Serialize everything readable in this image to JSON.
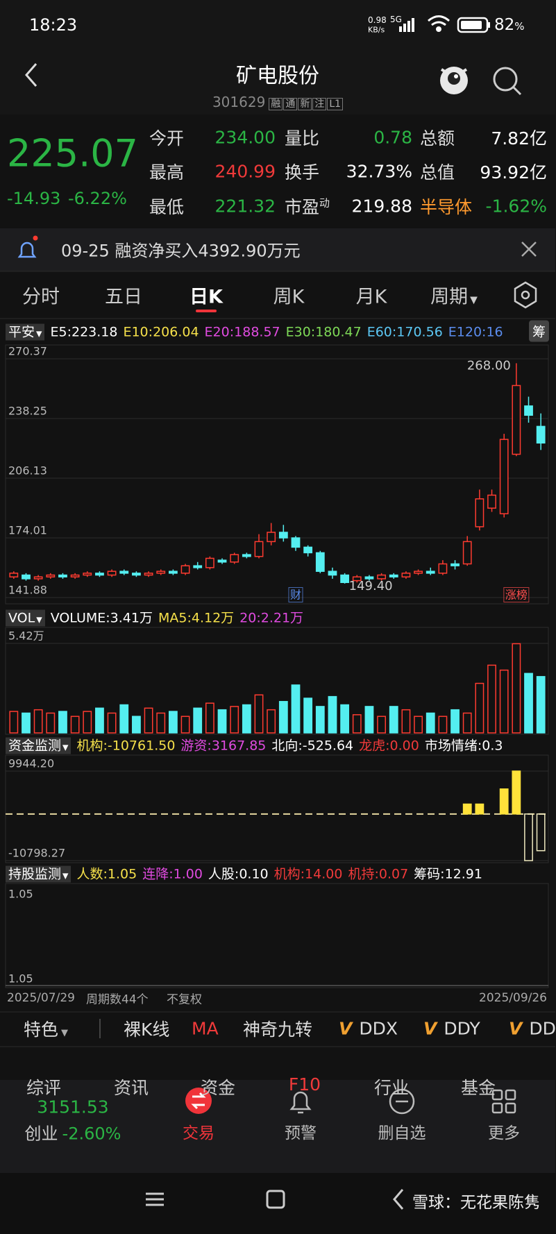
{
  "status": {
    "time": "18:23",
    "speed": "0.98",
    "speed_unit": "KB/s",
    "network": "5G",
    "battery": "82",
    "battery_unit": "%"
  },
  "header": {
    "title": "矿电股份",
    "code": "301629",
    "tags": [
      "融",
      "通",
      "新",
      "注",
      "L1"
    ]
  },
  "quote": {
    "price": "225.07",
    "change": "-14.93",
    "change_pct": "-6.22%",
    "color": "#2bb545",
    "fields": [
      {
        "label": "今开",
        "value": "234.00",
        "value_color": "#2bb545"
      },
      {
        "label": "量比",
        "value": "0.78",
        "value_color": "#2bb545"
      },
      {
        "label": "总额",
        "value": "7.82亿",
        "value_color": "#ffffff"
      },
      {
        "label": "最高",
        "value": "240.99",
        "value_color": "#f03a3a"
      },
      {
        "label": "换手",
        "value": "32.73%",
        "value_color": "#ffffff"
      },
      {
        "label": "总值",
        "value": "93.92亿",
        "value_color": "#ffffff"
      },
      {
        "label": "最低",
        "value": "221.32",
        "value_color": "#2bb545"
      },
      {
        "label": "市盈",
        "sup": "动",
        "value": "219.88",
        "value_color": "#ffffff"
      },
      {
        "label": "半导体",
        "label_color": "#ff9a2e",
        "value": "-1.62%",
        "value_color": "#2bb545"
      }
    ]
  },
  "notice": {
    "text": "09-25 融资净买入4392.90万元"
  },
  "tabs": {
    "items": [
      "分时",
      "五日",
      "日K",
      "周K",
      "月K",
      "周期"
    ],
    "active": 2
  },
  "indicators": {
    "price": {
      "selector": "平安",
      "items": [
        {
          "name": "E5:",
          "value": "223.18",
          "color": "#ffffff"
        },
        {
          "name": "E10:",
          "value": "206.04",
          "color": "#f5e04a"
        },
        {
          "name": "E20:",
          "value": "188.57",
          "color": "#e04be0"
        },
        {
          "name": "E30:",
          "value": "180.47",
          "color": "#7ed957"
        },
        {
          "name": "E60:",
          "value": "170.56",
          "color": "#5cc8f5"
        },
        {
          "name": "E120:",
          "value": "16",
          "color": "#5b8def"
        }
      ],
      "badge": "筹"
    },
    "volume": {
      "selector": "VOL",
      "items": [
        {
          "name": "VOLUME:",
          "value": "3.41万",
          "color": "#ffffff"
        },
        {
          "name": "MA5:",
          "value": "4.12万",
          "color": "#f5e04a"
        },
        {
          "name": "20:",
          "value": "2.21万",
          "color": "#e04be0"
        }
      ]
    },
    "fund": {
      "selector": "资金监测",
      "items": [
        {
          "name": "机构:",
          "value": "-10761.50",
          "color": "#f5e04a"
        },
        {
          "name": "游资:",
          "value": "3167.85",
          "color": "#e04be0"
        },
        {
          "name": "北向:",
          "value": "-525.64",
          "color": "#ffffff"
        },
        {
          "name": "龙虎:",
          "value": "0.00",
          "color": "#f03a3a"
        },
        {
          "name": "市场情绪:",
          "value": "0.3",
          "color": "#ffffff"
        }
      ]
    },
    "holding": {
      "selector": "持股监测",
      "items": [
        {
          "name": "人数:",
          "value": "1.05",
          "color": "#f5e04a"
        },
        {
          "name": "连降:",
          "value": "1.00",
          "color": "#e04be0"
        },
        {
          "name": "人股:",
          "value": "0.10",
          "color": "#ffffff"
        },
        {
          "name": "机构:",
          "value": "14.00",
          "color": "#f03a3a"
        },
        {
          "name": "机持:",
          "value": "0.07",
          "color": "#f03a3a"
        },
        {
          "name": "筹码:",
          "value": "12.91",
          "color": "#ffffff"
        }
      ]
    }
  },
  "holding_panel": {
    "top_label": "1.05",
    "bottom_label": "1.05"
  },
  "chart_data": [
    {
      "type": "candlestick",
      "open": [
        153,
        154,
        152,
        153,
        154,
        153,
        154,
        155,
        154,
        156,
        155,
        154,
        155,
        156,
        155,
        159,
        158,
        162,
        161,
        165,
        164,
        172,
        177,
        174,
        169,
        166,
        156,
        154,
        151,
        153,
        152,
        154,
        153,
        155,
        156,
        155,
        160,
        160,
        180,
        190,
        187,
        219,
        245,
        234
      ],
      "close": [
        155,
        152,
        153,
        154,
        153,
        154,
        155,
        154,
        156,
        155,
        154,
        155,
        156,
        155,
        159,
        158,
        163,
        161,
        165,
        164,
        172,
        177,
        174,
        169,
        166,
        156,
        154,
        150,
        153,
        152,
        154,
        153,
        155,
        156,
        155,
        160,
        159,
        172,
        195,
        197,
        227,
        256,
        240,
        225.07
      ],
      "high": [
        156,
        155,
        154,
        155,
        155,
        155,
        156,
        156,
        157,
        157,
        156,
        156,
        157,
        157,
        160,
        161,
        164,
        163,
        166,
        166,
        176,
        182,
        181,
        175,
        170,
        167,
        158,
        155,
        154,
        154,
        155,
        155,
        156,
        157,
        158,
        162,
        162,
        175,
        200,
        200,
        230,
        268,
        250,
        240.99
      ],
      "low": [
        152,
        151,
        151,
        152,
        152,
        152,
        153,
        153,
        153,
        154,
        153,
        153,
        154,
        154,
        154,
        157,
        157,
        160,
        160,
        163,
        163,
        170,
        172,
        167,
        164,
        155,
        152,
        149.4,
        150,
        151,
        151,
        152,
        152,
        154,
        154,
        154,
        157,
        159,
        178,
        188,
        185,
        218,
        236,
        221.32
      ],
      "ylim": [
        141.88,
        270.37
      ],
      "yticks": [
        141.88,
        174.01,
        206.13,
        238.25,
        270.37
      ],
      "up_color": "#ff3b30",
      "down_color": "#54eef0",
      "annotations": [
        {
          "text": "268.00",
          "index": 41
        },
        {
          "text": "149.40",
          "index": 27
        }
      ],
      "markers": [
        {
          "text": "财",
          "index": 23,
          "color": "#5b8def"
        },
        {
          "text": "涨榜",
          "index": 41,
          "color": "#ff4d4d"
        }
      ]
    },
    {
      "type": "bar",
      "values": [
        1.3,
        1.2,
        1.4,
        1.2,
        1.3,
        1.0,
        1.3,
        1.5,
        1.2,
        1.7,
        1.0,
        1.5,
        1.2,
        1.3,
        1.0,
        1.5,
        1.8,
        1.4,
        1.6,
        1.7,
        2.3,
        1.4,
        1.9,
        2.9,
        2.1,
        1.6,
        2.2,
        1.7,
        1.1,
        1.6,
        1.0,
        1.6,
        1.4,
        1.0,
        1.2,
        1.0,
        1.4,
        1.2,
        3.0,
        4.1,
        3.8,
        5.4,
        3.6,
        3.41
      ],
      "ylim": [
        0,
        5.42
      ],
      "yticks": [
        {
          "value": 5.42,
          "label": "5.42万"
        }
      ]
    },
    {
      "type": "bar",
      "values": [
        null,
        null,
        null,
        null,
        null,
        null,
        null,
        null,
        null,
        null,
        null,
        null,
        null,
        null,
        null,
        null,
        null,
        null,
        null,
        null,
        null,
        null,
        null,
        null,
        null,
        null,
        null,
        null,
        null,
        null,
        null,
        null,
        null,
        null,
        null,
        null,
        null,
        2300,
        2300,
        null,
        5800,
        9944.2,
        -10798.27,
        -8500
      ],
      "ylim": [
        -10798.27,
        9944.2
      ],
      "yticks": [
        {
          "value": 9944.2,
          "label": "9944.20"
        },
        {
          "value": -10798.27,
          "label": "-10798.27"
        }
      ],
      "pos_color": "#ffe23a",
      "neg_color": "#f0eac0"
    }
  ],
  "footer_dates": {
    "start": "2025/07/29",
    "count": "周期数44个",
    "adjust": "不复权",
    "end": "2025/09/26"
  },
  "tools": {
    "feature": "特色",
    "items": [
      {
        "text": "裸K线"
      },
      {
        "text": "MA",
        "color": "#f03a3a"
      },
      {
        "text": "神奇九转"
      },
      {
        "prefix": "V",
        "text": "DDX"
      },
      {
        "prefix": "V",
        "text": "DDY"
      },
      {
        "prefix": "V",
        "text": "DD"
      }
    ]
  },
  "subtabs": [
    "综评",
    "资讯",
    "资金",
    "F10",
    "行业",
    "基金"
  ],
  "bottom_nav": {
    "index_value": "3151.53",
    "index_name": "创业",
    "index_pct": "-2.60%",
    "items": [
      "交易",
      "预警",
      "删自选",
      "更多"
    ],
    "active": 0
  },
  "watermark": "雪球：无花果陈隽"
}
